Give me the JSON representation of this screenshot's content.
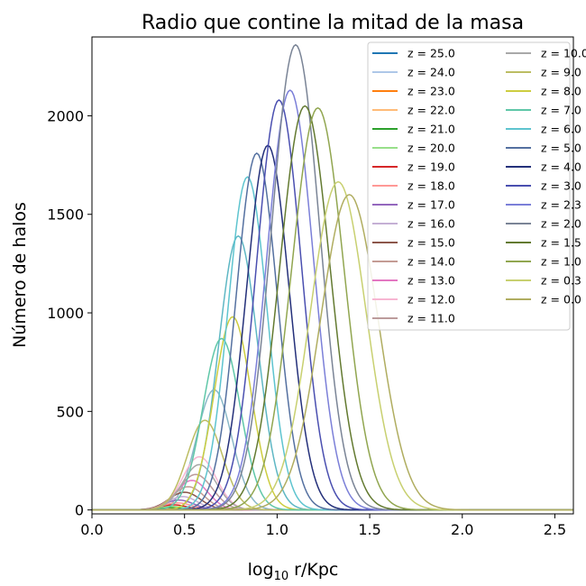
{
  "chart_data": {
    "type": "line",
    "title": "Radio que contine la mitad de la masa",
    "xlabel_prefix": "log",
    "xlabel_sub": "10",
    "xlabel_suffix": " r/Kpc",
    "ylabel": "Número de halos",
    "xlim": [
      0.0,
      2.6
    ],
    "ylim": [
      -20,
      2400
    ],
    "xticks": [
      0.0,
      0.5,
      1.0,
      1.5,
      2.0,
      2.5
    ],
    "xtick_labels": [
      "0.0",
      "0.5",
      "1.0",
      "1.5",
      "2.0",
      "2.5"
    ],
    "yticks": [
      0,
      500,
      1000,
      1500,
      2000
    ],
    "ytick_labels": [
      "0",
      "500",
      "1000",
      "1500",
      "2000"
    ],
    "grid": false,
    "legend_placement": "top-right",
    "legend_columns": 2,
    "series": [
      {
        "name": "z = 25.0",
        "color": "#1f77b4",
        "peak_x": 0.33,
        "peak_y": 2,
        "width": 0.07
      },
      {
        "name": "z = 24.0",
        "color": "#aec7e8",
        "peak_x": 0.35,
        "peak_y": 3,
        "width": 0.07
      },
      {
        "name": "z = 23.0",
        "color": "#ff7f0e",
        "peak_x": 0.37,
        "peak_y": 5,
        "width": 0.07
      },
      {
        "name": "z = 22.0",
        "color": "#ffbb78",
        "peak_x": 0.39,
        "peak_y": 8,
        "width": 0.07
      },
      {
        "name": "z = 21.0",
        "color": "#2ca02c",
        "peak_x": 0.41,
        "peak_y": 12,
        "width": 0.075
      },
      {
        "name": "z = 20.0",
        "color": "#98df8a",
        "peak_x": 0.43,
        "peak_y": 18,
        "width": 0.075
      },
      {
        "name": "z = 19.0",
        "color": "#d62728",
        "peak_x": 0.44,
        "peak_y": 26,
        "width": 0.075
      },
      {
        "name": "z = 18.0",
        "color": "#ff9896",
        "peak_x": 0.46,
        "peak_y": 36,
        "width": 0.08
      },
      {
        "name": "z = 17.0",
        "color": "#9467bd",
        "peak_x": 0.47,
        "peak_y": 50,
        "width": 0.08
      },
      {
        "name": "z = 16.0",
        "color": "#c5b0d5",
        "peak_x": 0.49,
        "peak_y": 68,
        "width": 0.08
      },
      {
        "name": "z = 15.0",
        "color": "#8c564b",
        "peak_x": 0.5,
        "peak_y": 90,
        "width": 0.085
      },
      {
        "name": "z = 14.0",
        "color": "#c49c94",
        "peak_x": 0.52,
        "peak_y": 118,
        "width": 0.085
      },
      {
        "name": "z = 13.0",
        "color": "#e377c2",
        "peak_x": 0.54,
        "peak_y": 150,
        "width": 0.085
      },
      {
        "name": "z = 12.0",
        "color": "#f7b6d2",
        "peak_x": 0.58,
        "peak_y": 270,
        "width": 0.09
      },
      {
        "name": "z = 11.0",
        "color": "#bc9c9c",
        "peak_x": 0.56,
        "peak_y": 180,
        "width": 0.09
      },
      {
        "name": "z = 10.0",
        "color": "#a8a8a8",
        "peak_x": 0.58,
        "peak_y": 230,
        "width": 0.09
      },
      {
        "name": "z = 9.0",
        "color": "#bcbd63",
        "peak_x": 0.61,
        "peak_y": 455,
        "width": 0.095
      },
      {
        "name": "z = 8.0",
        "color": "#cdcd40",
        "peak_x": 0.76,
        "peak_y": 980,
        "width": 0.1
      },
      {
        "name": "z = 7.0",
        "color": "#5fc7a8",
        "peak_x": 0.7,
        "peak_y": 870,
        "width": 0.1
      },
      {
        "name": "z = 6.0",
        "color": "#5ec4cf",
        "peak_x": 0.84,
        "peak_y": 1690,
        "width": 0.105
      },
      {
        "name": "z = 5.0",
        "color": "#5470a0",
        "peak_x": 0.89,
        "peak_y": 1810,
        "width": 0.11
      },
      {
        "name": "z = 4.0",
        "color": "#24307a",
        "peak_x": 0.95,
        "peak_y": 1850,
        "width": 0.115
      },
      {
        "name": "z = 3.0",
        "color": "#4a4fb0",
        "peak_x": 1.01,
        "peak_y": 2080,
        "width": 0.12
      },
      {
        "name": "z = 2.3",
        "color": "#7b7fd8",
        "peak_x": 1.07,
        "peak_y": 2130,
        "width": 0.125
      },
      {
        "name": "z = 2.0",
        "color": "#7a8496",
        "peak_x": 1.1,
        "peak_y": 2360,
        "width": 0.13
      },
      {
        "name": "z = 1.5",
        "color": "#637a30",
        "peak_x": 1.15,
        "peak_y": 2050,
        "width": 0.135
      },
      {
        "name": "z = 1.0",
        "color": "#91a650",
        "peak_x": 1.22,
        "peak_y": 2040,
        "width": 0.14
      },
      {
        "name": "z = 0.3",
        "color": "#c8d070",
        "peak_x": 1.33,
        "peak_y": 1665,
        "width": 0.15
      },
      {
        "name": "z = 0.0",
        "color": "#b0ad60",
        "peak_x": 1.39,
        "peak_y": 1600,
        "width": 0.155
      }
    ],
    "extra_curves": [
      {
        "color": "#5eb7c4",
        "peak_x": 0.79,
        "peak_y": 1390,
        "width": 0.105
      },
      {
        "color": "#8ab8c8",
        "peak_x": 0.66,
        "peak_y": 610,
        "width": 0.095
      }
    ]
  }
}
